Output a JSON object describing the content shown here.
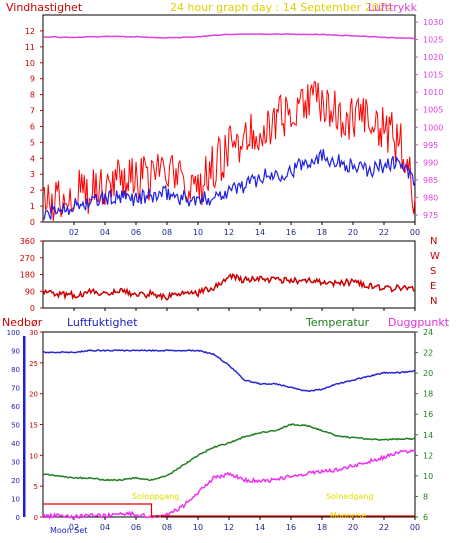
{
  "header": {
    "wind_label": "Vindhastighet",
    "title": "24 hour graph day : 14 September 2024",
    "pressure_label": "Lufttrykk"
  },
  "colors": {
    "frame": "#000000",
    "wind_gust": "#ff0000",
    "wind_avg": "#2020e0",
    "pressure": "#e040e0",
    "direction": "#cc0000",
    "humidity": "#2828d0",
    "temperature": "#208020",
    "dewpoint": "#f030f0",
    "rain": "#e00000",
    "sun_moon": "#e0e000",
    "title": "#e0d000"
  },
  "time_ticks": [
    "02",
    "04",
    "06",
    "08",
    "10",
    "12",
    "14",
    "16",
    "18",
    "20",
    "22",
    "00"
  ],
  "wind_axis": {
    "ticks": [
      "0",
      "1",
      "2",
      "3",
      "4",
      "5",
      "6",
      "7",
      "8",
      "9",
      "10",
      "11",
      "12"
    ]
  },
  "pressure_axis": {
    "ticks": [
      "975",
      "980",
      "985",
      "990",
      "995",
      "1000",
      "1005",
      "1010",
      "1015",
      "1020",
      "1025",
      "1030"
    ]
  },
  "direction_axis": {
    "ticks": [
      "0",
      "90",
      "180",
      "270",
      "360"
    ],
    "compass": [
      "N",
      "W",
      "S",
      "E",
      "N"
    ]
  },
  "lower_panel": {
    "rain_label": "Nedbør",
    "humidity_label": "Luftfuktighet",
    "temperature_label": "Temperatur",
    "dewpoint_label": "Duggpunkt",
    "rain_ticks": [
      "0",
      "5",
      "10",
      "15",
      "20",
      "25",
      "30"
    ],
    "humidity_ticks": [
      "0",
      "10",
      "20",
      "30",
      "40",
      "50",
      "60",
      "70",
      "80",
      "90",
      "100"
    ],
    "temperature_ticks": [
      "6",
      "8",
      "10",
      "12",
      "14",
      "16",
      "18",
      "20",
      "22",
      "24"
    ],
    "moon_set": "Moon Set",
    "sun_rise": "Soloppgang",
    "sun_set": "Solnedgang",
    "moon_rise": "Moonrise"
  },
  "chart_data": [
    {
      "type": "line",
      "title": "24 hour graph day : 14 September 2024",
      "xlabel": "",
      "ylabel": "Vindhastighet",
      "xlim": [
        0,
        24
      ],
      "ylim": [
        0,
        13
      ],
      "y2label": "Lufttrykk",
      "y2lim": [
        973,
        1032
      ],
      "series": [
        {
          "name": "Vindhastighet",
          "axis": "left",
          "kind": "gust",
          "x": [
            0,
            1,
            2,
            3,
            4,
            5,
            6,
            7,
            8,
            9,
            10,
            11,
            12,
            13,
            14,
            15,
            16,
            17,
            18,
            19,
            20,
            21,
            22,
            23,
            24
          ],
          "y": [
            1.0,
            1.5,
            2.0,
            2.0,
            2.5,
            3.0,
            2.5,
            2.8,
            3.0,
            2.5,
            2.0,
            3.5,
            4.5,
            5.5,
            6.0,
            6.2,
            7.0,
            7.5,
            7.6,
            6.8,
            6.5,
            6.2,
            5.8,
            5.0,
            1.5
          ]
        },
        {
          "name": "Vindhastighet",
          "axis": "left",
          "kind": "average",
          "x": [
            0,
            1,
            2,
            3,
            4,
            5,
            6,
            7,
            8,
            9,
            10,
            11,
            12,
            13,
            14,
            15,
            16,
            17,
            18,
            19,
            20,
            21,
            22,
            23,
            24
          ],
          "y": [
            0.3,
            0.8,
            1.0,
            1.2,
            1.5,
            1.5,
            1.5,
            1.6,
            1.8,
            1.5,
            1.3,
            1.6,
            2.0,
            2.3,
            2.8,
            3.0,
            3.2,
            3.8,
            4.2,
            3.8,
            3.5,
            3.2,
            3.6,
            3.8,
            2.5
          ]
        },
        {
          "name": "Lufttrykk",
          "axis": "right",
          "x": [
            0,
            2,
            4,
            6,
            8,
            10,
            12,
            14,
            16,
            18,
            20,
            22,
            24
          ],
          "y": [
            1025.8,
            1025.6,
            1025.9,
            1025.8,
            1025.5,
            1025.8,
            1026.5,
            1026.6,
            1026.5,
            1026.4,
            1026.1,
            1025.6,
            1025.3
          ]
        }
      ]
    },
    {
      "type": "line",
      "title": "",
      "xlabel": "",
      "ylabel": "",
      "xlim": [
        0,
        24
      ],
      "ylim": [
        0,
        360
      ],
      "series": [
        {
          "name": "",
          "x": [
            0,
            1,
            2,
            3,
            4,
            5,
            6,
            7,
            8,
            9,
            10,
            11,
            12,
            13,
            14,
            15,
            16,
            17,
            18,
            19,
            20,
            21,
            22,
            23,
            24
          ],
          "y": [
            80,
            75,
            70,
            85,
            80,
            95,
            70,
            75,
            60,
            75,
            80,
            110,
            170,
            150,
            155,
            150,
            145,
            150,
            140,
            135,
            140,
            120,
            100,
            110,
            95
          ]
        }
      ]
    },
    {
      "type": "line",
      "title": "",
      "xlabel": "",
      "ylim": [
        0,
        100
      ],
      "y2lim": [
        6,
        24
      ],
      "series": [
        {
          "name": "Luftfuktighet",
          "axis": "humidity",
          "x": [
            0,
            1,
            2,
            3,
            4,
            5,
            6,
            7,
            8,
            9,
            10,
            11,
            12,
            13,
            14,
            15,
            16,
            17,
            18,
            19,
            20,
            21,
            22,
            23,
            24
          ],
          "y": [
            89,
            89,
            89,
            90,
            90,
            90,
            90,
            90,
            90,
            90,
            90,
            88,
            82,
            74,
            72,
            72,
            70,
            68,
            69,
            72,
            74,
            76,
            78,
            78,
            79
          ]
        },
        {
          "name": "Temperatur",
          "axis": "temperature",
          "x": [
            0,
            1,
            2,
            3,
            4,
            5,
            6,
            7,
            8,
            9,
            10,
            11,
            12,
            13,
            14,
            15,
            16,
            17,
            18,
            19,
            20,
            21,
            22,
            23,
            24
          ],
          "y": [
            10.2,
            10.0,
            9.8,
            9.8,
            9.6,
            9.6,
            9.8,
            9.6,
            10.0,
            11.0,
            12.0,
            12.8,
            13.2,
            13.8,
            14.2,
            14.4,
            15.0,
            14.9,
            14.4,
            13.9,
            13.7,
            13.6,
            13.5,
            13.6,
            13.6
          ]
        },
        {
          "name": "Duggpunkt",
          "axis": "temperature",
          "x": [
            0,
            1,
            2,
            3,
            4,
            5,
            6,
            7,
            8,
            9,
            10,
            11,
            12,
            13,
            14,
            15,
            16,
            17,
            18,
            19,
            20,
            21,
            22,
            23,
            24
          ],
          "y": [
            6.0,
            6.2,
            6.0,
            6.2,
            6.1,
            6.3,
            6.3,
            6.0,
            6.2,
            7.0,
            8.4,
            9.8,
            10.2,
            9.6,
            9.5,
            9.6,
            10.0,
            10.2,
            10.4,
            10.6,
            11.0,
            11.4,
            11.8,
            12.3,
            12.4
          ]
        },
        {
          "name": "Nedbør",
          "axis": "rain",
          "x": [
            0,
            1,
            2,
            3,
            4,
            5,
            6,
            7,
            7.5,
            8,
            24
          ],
          "y": [
            0,
            0,
            0,
            0,
            0,
            0,
            0,
            0,
            0,
            0,
            0
          ]
        }
      ]
    }
  ]
}
